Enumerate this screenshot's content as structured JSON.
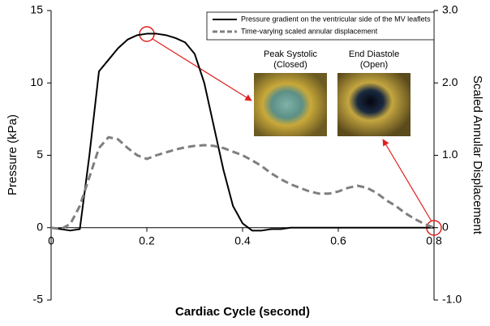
{
  "chart_data": {
    "type": "line",
    "x_label": "Cardiac Cycle (second)",
    "y_label": "Pressure (kPa)",
    "y2_label": "Scaled Annular Displacement",
    "x": [
      0,
      0.02,
      0.04,
      0.06,
      0.08,
      0.1,
      0.12,
      0.14,
      0.16,
      0.18,
      0.2,
      0.22,
      0.24,
      0.26,
      0.28,
      0.3,
      0.32,
      0.34,
      0.36,
      0.38,
      0.4,
      0.42,
      0.44,
      0.46,
      0.48,
      0.5,
      0.52,
      0.54,
      0.56,
      0.58,
      0.6,
      0.62,
      0.64,
      0.66,
      0.68,
      0.7,
      0.72,
      0.74,
      0.76,
      0.78,
      0.8
    ],
    "series": [
      {
        "name": "Pressure gradient on the ventricular side of the MV leaflets",
        "color": "#000000",
        "dash": "solid",
        "values": [
          0,
          -0.1,
          -0.2,
          -0.1,
          5,
          10.8,
          11.6,
          12.4,
          13,
          13.3,
          13.4,
          13.4,
          13.3,
          13.1,
          12.8,
          12,
          10,
          7,
          4,
          1.5,
          0.3,
          -0.2,
          -0.2,
          -0.1,
          -0.1,
          0,
          0,
          0,
          0,
          0,
          0,
          0,
          0,
          0,
          0,
          0,
          0,
          0,
          0,
          0,
          0
        ]
      },
      {
        "name": "Time-varying scaled annular displacement",
        "color": "#7f7f7f",
        "dash": "dashed",
        "axis": "y2",
        "values": [
          0,
          -0.02,
          0.05,
          0.3,
          0.7,
          1.1,
          1.25,
          1.22,
          1.1,
          1.0,
          0.95,
          1.0,
          1.04,
          1.08,
          1.11,
          1.13,
          1.14,
          1.13,
          1.1,
          1.05,
          1.0,
          0.93,
          0.85,
          0.75,
          0.67,
          0.6,
          0.55,
          0.5,
          0.47,
          0.47,
          0.5,
          0.55,
          0.58,
          0.55,
          0.48,
          0.38,
          0.3,
          0.2,
          0.12,
          0.05,
          0.0
        ]
      }
    ],
    "xlim": [
      0,
      0.8
    ],
    "xticks": [
      0,
      0.2,
      0.4,
      0.6,
      0.8
    ],
    "ylim": [
      -5,
      15
    ],
    "yticks": [
      -5,
      0,
      5,
      10,
      15
    ],
    "y2lim": [
      -1,
      3
    ],
    "y2ticks": [
      {
        "value": -1,
        "label": "-1.0"
      },
      0,
      {
        "value": 1,
        "label": "1.0"
      },
      {
        "value": 2,
        "label": "2.0"
      },
      {
        "value": 3,
        "label": "3.0"
      }
    ],
    "legend": "upper right",
    "grid": false,
    "annotations": [
      {
        "lines": [
          "Peak Systolic",
          "(Closed)"
        ]
      },
      {
        "lines": [
          "End Diastole",
          "(Open)"
        ]
      }
    ]
  }
}
